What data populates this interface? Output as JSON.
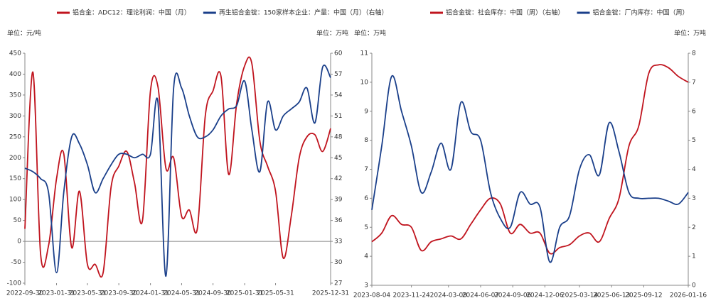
{
  "chart_data": [
    {
      "type": "line",
      "y_label": "单位：元/吨",
      "y2_label": "单位：万吨",
      "x": [
        "2022-09-30",
        "2022-10-31",
        "2022-11-30",
        "2022-12-31",
        "2023-01-31",
        "2023-02-28",
        "2023-03-31",
        "2023-04-30",
        "2023-05-31",
        "2023-06-30",
        "2023-07-31",
        "2023-08-31",
        "2023-09-30",
        "2023-10-31",
        "2023-11-30",
        "2023-12-31",
        "2024-01-31",
        "2024-02-29",
        "2024-03-31",
        "2024-04-30",
        "2024-05-31",
        "2024-06-30",
        "2024-07-31",
        "2024-08-31",
        "2024-09-30",
        "2024-10-31",
        "2024-11-30",
        "2024-12-31",
        "2025-01-31",
        "2025-02-28",
        "2025-03-31",
        "2025-04-30",
        "2025-05-31",
        "2025-06-30",
        "2025-07-31",
        "2025-08-31",
        "2025-09-30",
        "2025-10-31",
        "2025-11-30",
        "2025-12-31"
      ],
      "xlim": [
        "2022-09-30",
        "2025-12-31"
      ],
      "xticks": [
        "2022-09-30",
        "2023-01-31",
        "2023-05-31",
        "2023-09-30",
        "2024-01-31",
        "2024-05-31",
        "2024-09-30",
        "2025-01-31",
        "2025-05-31",
        "2025-12-31"
      ],
      "ylim": [
        -100,
        450
      ],
      "yticks": [
        -100,
        -50,
        0,
        50,
        100,
        150,
        200,
        250,
        300,
        350,
        400,
        450
      ],
      "y2lim": [
        27,
        60
      ],
      "y2ticks": [
        27,
        30,
        33,
        36,
        39,
        42,
        45,
        48,
        51,
        54,
        57,
        60
      ],
      "series": [
        {
          "name": "铝合金：ADC12：理论利润：中国（月）",
          "color": "#c0141e",
          "values": [
            30,
            405,
            -30,
            -10,
            150,
            210,
            -15,
            120,
            -55,
            -55,
            -75,
            130,
            180,
            215,
            140,
            50,
            360,
            370,
            175,
            200,
            60,
            75,
            30,
            300,
            360,
            395,
            160,
            330,
            420,
            425,
            240,
            180,
            120,
            -40,
            60,
            200,
            250,
            255,
            215,
            270
          ]
        },
        {
          "name": "再生铝合金锭：150家样本企业：产量：中国（月）（右轴）",
          "color": "#1a3f8a",
          "axis": "y2",
          "values": [
            43.5,
            43,
            42,
            40,
            28.5,
            40,
            48,
            47,
            44,
            40,
            42,
            44,
            45.5,
            45.5,
            45,
            45.5,
            45.5,
            53,
            28,
            55,
            55,
            51,
            48,
            48,
            49,
            51,
            52,
            52.5,
            56,
            49,
            43,
            53,
            49,
            51,
            52,
            53,
            55,
            50,
            58,
            56.5
          ]
        }
      ]
    },
    {
      "type": "line",
      "y_label": "单位：万吨",
      "y2_label": "单位：万吨",
      "x": [
        "2023-08-04",
        "2023-09-01",
        "2023-09-29",
        "2023-10-27",
        "2023-11-24",
        "2023-12-22",
        "2024-01-19",
        "2024-02-16",
        "2024-03-15",
        "2024-04-12",
        "2024-05-10",
        "2024-06-07",
        "2024-07-05",
        "2024-08-02",
        "2024-08-30",
        "2024-09-27",
        "2024-10-25",
        "2024-11-22",
        "2024-12-20",
        "2025-01-17",
        "2025-02-14",
        "2025-03-14",
        "2025-04-11",
        "2025-05-09",
        "2025-06-06",
        "2025-07-04",
        "2025-08-01",
        "2025-08-29",
        "2025-09-26",
        "2025-10-24",
        "2025-11-21",
        "2025-12-19",
        "2026-01-16"
      ],
      "xlim": [
        "2023-08-04",
        "2026-01-16"
      ],
      "xticks": [
        "2023-08-04",
        "2023-11-24",
        "2024-03-08",
        "2024-06-07",
        "2024-09-06",
        "2024-12-06",
        "2025-03-14",
        "2025-06-13",
        "2025-09-12",
        "2026-01-16"
      ],
      "ylim": [
        3,
        11
      ],
      "yticks": [
        3,
        4,
        5,
        6,
        7,
        8,
        9,
        10,
        11
      ],
      "y2lim": [
        0,
        8
      ],
      "y2ticks": [
        0,
        1,
        2,
        3,
        4,
        5,
        6,
        7,
        8
      ],
      "series": [
        {
          "name": "铝合金锭：社会库存：中国（周）（右轴）",
          "color": "#c0141e",
          "axis": "y2",
          "values": [
            1.5,
            1.8,
            2.4,
            2.1,
            2.0,
            1.2,
            1.5,
            1.6,
            1.7,
            1.6,
            2.1,
            2.6,
            3.0,
            2.8,
            1.8,
            2.1,
            1.8,
            1.8,
            1.1,
            1.3,
            1.4,
            1.7,
            1.8,
            1.5,
            2.3,
            3.0,
            4.8,
            5.5,
            7.3,
            7.6,
            7.5,
            7.2,
            7.0
          ]
        },
        {
          "name": "铝合金锭：厂内库存：中国（周）",
          "color": "#1a3f8a",
          "values": [
            5.6,
            7.8,
            10.2,
            9.0,
            7.8,
            6.2,
            6.9,
            7.9,
            7.0,
            9.3,
            8.3,
            8.0,
            6.2,
            5.3,
            5.0,
            6.2,
            5.8,
            5.7,
            3.8,
            5.0,
            5.4,
            7.0,
            7.5,
            6.8,
            8.6,
            7.6,
            6.2,
            6.0,
            6.0,
            6.0,
            5.9,
            5.8,
            6.2
          ]
        }
      ]
    }
  ]
}
